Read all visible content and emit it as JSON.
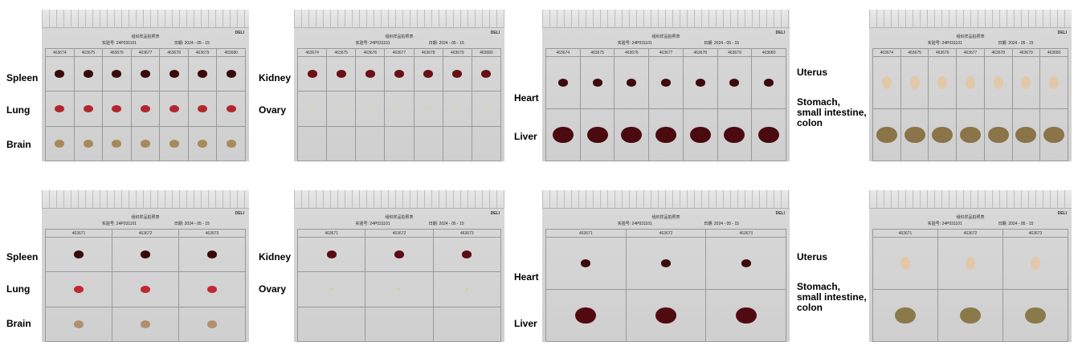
{
  "panels": [
    {
      "id": "top-1",
      "cols": 7,
      "sample_ids": [
        "463674",
        "463675",
        "463676",
        "463677",
        "463678",
        "463679",
        "463680"
      ],
      "sheet_id_text": "24P031101",
      "sheet_date_text": "2024 - 05 - 15",
      "rows": [
        "Spleen",
        "Lung",
        "Brain"
      ],
      "colors": [
        "#3a0a0a",
        "#b0282e",
        "#a88a5a"
      ]
    },
    {
      "id": "top-2",
      "cols": 7,
      "sample_ids": [
        "463674",
        "463675",
        "463676",
        "463677",
        "463678",
        "463679",
        "463680"
      ],
      "sheet_id_text": "24P031101",
      "sheet_date_text": "2024 - 05 - 15",
      "rows": [
        "Kidney",
        "Ovary"
      ],
      "colors": [
        "#6a1018",
        "#d8d2b8"
      ]
    },
    {
      "id": "top-3",
      "cols": 7,
      "sample_ids": [
        "463674",
        "463675",
        "463676",
        "463677",
        "463678",
        "463679",
        "463680"
      ],
      "sheet_id_text": "24P031101",
      "sheet_date_text": "2024 - 05 - 15",
      "rows": [
        "Heart",
        "Liver"
      ],
      "colors": [
        "#3d0a0e",
        "#4a0a10"
      ]
    },
    {
      "id": "top-4",
      "cols": 7,
      "sample_ids": [
        "463674",
        "463675",
        "463676",
        "463677",
        "463678",
        "463679",
        "463680"
      ],
      "sheet_id_text": "24P031101",
      "sheet_date_text": "2024 - 05 - 15",
      "rows": [
        "Uterus",
        "Stomach,\nsmall intestine,\ncolon"
      ],
      "colors": [
        "#e2c8a8",
        "#8a7448"
      ]
    },
    {
      "id": "bottom-1",
      "cols": 3,
      "sample_ids": [
        "463671",
        "463672",
        "463673"
      ],
      "sheet_id_text": "24P031101",
      "sheet_date_text": "2024 - 05 - 15",
      "rows": [
        "Spleen",
        "Lung",
        "Brain"
      ],
      "colors": [
        "#3a0a0a",
        "#c02830",
        "#b09070"
      ]
    },
    {
      "id": "bottom-2",
      "cols": 3,
      "sample_ids": [
        "463671",
        "463672",
        "463673"
      ],
      "sheet_id_text": "24P031101",
      "sheet_date_text": "2024 - 05 - 15",
      "rows": [
        "Kidney",
        "Ovary"
      ],
      "colors": [
        "#5a0c16",
        "#d6ccb0"
      ]
    },
    {
      "id": "bottom-3",
      "cols": 3,
      "sample_ids": [
        "463671",
        "463672",
        "463673"
      ],
      "sheet_id_text": "24P031101",
      "sheet_date_text": "2024 - 05 - 15",
      "rows": [
        "Heart",
        "Liver"
      ],
      "colors": [
        "#3a0a0e",
        "#520a12"
      ]
    },
    {
      "id": "bottom-4",
      "cols": 3,
      "sample_ids": [
        "463671",
        "463672",
        "463673"
      ],
      "sheet_id_text": "24P031101",
      "sheet_date_text": "2024 - 05 - 15",
      "rows": [
        "Uterus",
        "Stomach,\nsmall intestine,\ncolon"
      ],
      "colors": [
        "#e2c8a8",
        "#8a7a4a"
      ]
    }
  ],
  "sheet_labels": {
    "title": "组织样品拍照表",
    "id_label": "实验号:",
    "date_label": "日期:",
    "brand": "DELI"
  }
}
